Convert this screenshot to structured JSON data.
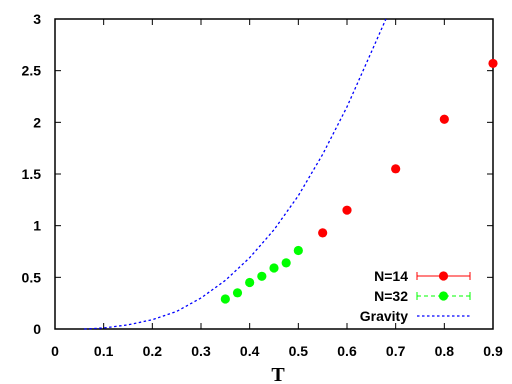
{
  "chart_data": {
    "type": "scatter",
    "xlabel": "T",
    "ylabel": "",
    "xlim": [
      0,
      0.9
    ],
    "ylim": [
      0,
      3
    ],
    "xticks": [
      "0",
      "0.1",
      "0.2",
      "0.3",
      "0.4",
      "0.5",
      "0.6",
      "0.7",
      "0.8",
      "0.9"
    ],
    "yticks": [
      "0",
      "0.5",
      "1",
      "1.5",
      "2",
      "2.5",
      "3"
    ],
    "grid": false,
    "legend_position": "bottom-right",
    "series": [
      {
        "name": "N=14",
        "style": "points-with-errorbars",
        "color": "#ff0000",
        "points": [
          {
            "x": 0.55,
            "y": 0.93
          },
          {
            "x": 0.6,
            "y": 1.15
          },
          {
            "x": 0.7,
            "y": 1.55
          },
          {
            "x": 0.8,
            "y": 2.03
          },
          {
            "x": 0.9,
            "y": 2.57
          }
        ]
      },
      {
        "name": "N=32",
        "style": "points-with-errorbars",
        "color": "#00ff00",
        "points": [
          {
            "x": 0.35,
            "y": 0.29
          },
          {
            "x": 0.375,
            "y": 0.35
          },
          {
            "x": 0.4,
            "y": 0.45
          },
          {
            "x": 0.425,
            "y": 0.51
          },
          {
            "x": 0.45,
            "y": 0.59
          },
          {
            "x": 0.475,
            "y": 0.64
          },
          {
            "x": 0.5,
            "y": 0.76
          }
        ]
      },
      {
        "name": "Gravity",
        "style": "dotted-line",
        "color": "#0000ff",
        "curve": [
          {
            "x": 0.06,
            "y": 0
          },
          {
            "x": 0.1,
            "y": 0.01
          },
          {
            "x": 0.15,
            "y": 0.04
          },
          {
            "x": 0.2,
            "y": 0.09
          },
          {
            "x": 0.25,
            "y": 0.17
          },
          {
            "x": 0.3,
            "y": 0.3
          },
          {
            "x": 0.35,
            "y": 0.47
          },
          {
            "x": 0.4,
            "y": 0.69
          },
          {
            "x": 0.45,
            "y": 0.96
          },
          {
            "x": 0.5,
            "y": 1.29
          },
          {
            "x": 0.55,
            "y": 1.69
          },
          {
            "x": 0.6,
            "y": 2.15
          },
          {
            "x": 0.65,
            "y": 2.68
          },
          {
            "x": 0.68,
            "y": 3.0
          }
        ]
      }
    ]
  }
}
